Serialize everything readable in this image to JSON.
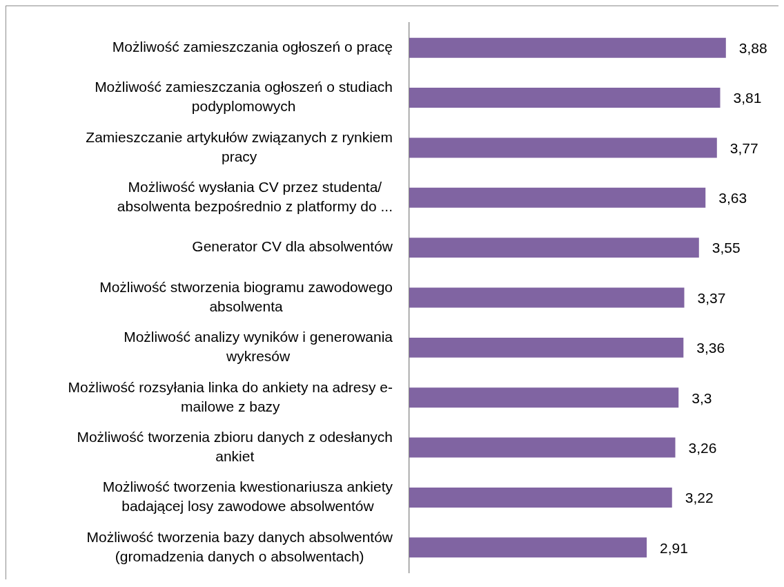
{
  "chart_data": {
    "type": "bar",
    "orientation": "horizontal",
    "categories": [
      "Możliwość zamieszczania ogłoszeń o pracę",
      "Możliwość zamieszczania ogłoszeń o studiach\npodyplomowych",
      "Zamieszczanie artykułów związanych z rynkiem\npracy",
      "Możliwość wysłania CV przez studenta/\nabsolwenta bezpośrednio z platformy do ...",
      "Generator CV dla absolwentów",
      "Możliwość stworzenia biogramu zawodowego\nabsolwenta",
      "Możliwość analizy wyników i generowania\nwykresów",
      "Możliwość rozsyłania linka do ankiety na adresy e-\nmailowe z bazy",
      "Możliwość tworzenia zbioru danych z odesłanych\nankiet",
      "Możliwość tworzenia kwestionariusza ankiety\nbadającej losy zawodowe absolwentów",
      "Możliwość tworzenia bazy danych absolwentów\n(gromadzenia danych o absolwentach)"
    ],
    "values": [
      3.88,
      3.81,
      3.77,
      3.63,
      3.55,
      3.37,
      3.36,
      3.3,
      3.26,
      3.22,
      2.91
    ],
    "value_labels": [
      "3,88",
      "3,81",
      "3,77",
      "3,63",
      "3,55",
      "3,37",
      "3,36",
      "3,3",
      "3,26",
      "3,22",
      "2,91"
    ],
    "color": "#8064a2",
    "tick_labels": "y"
  }
}
